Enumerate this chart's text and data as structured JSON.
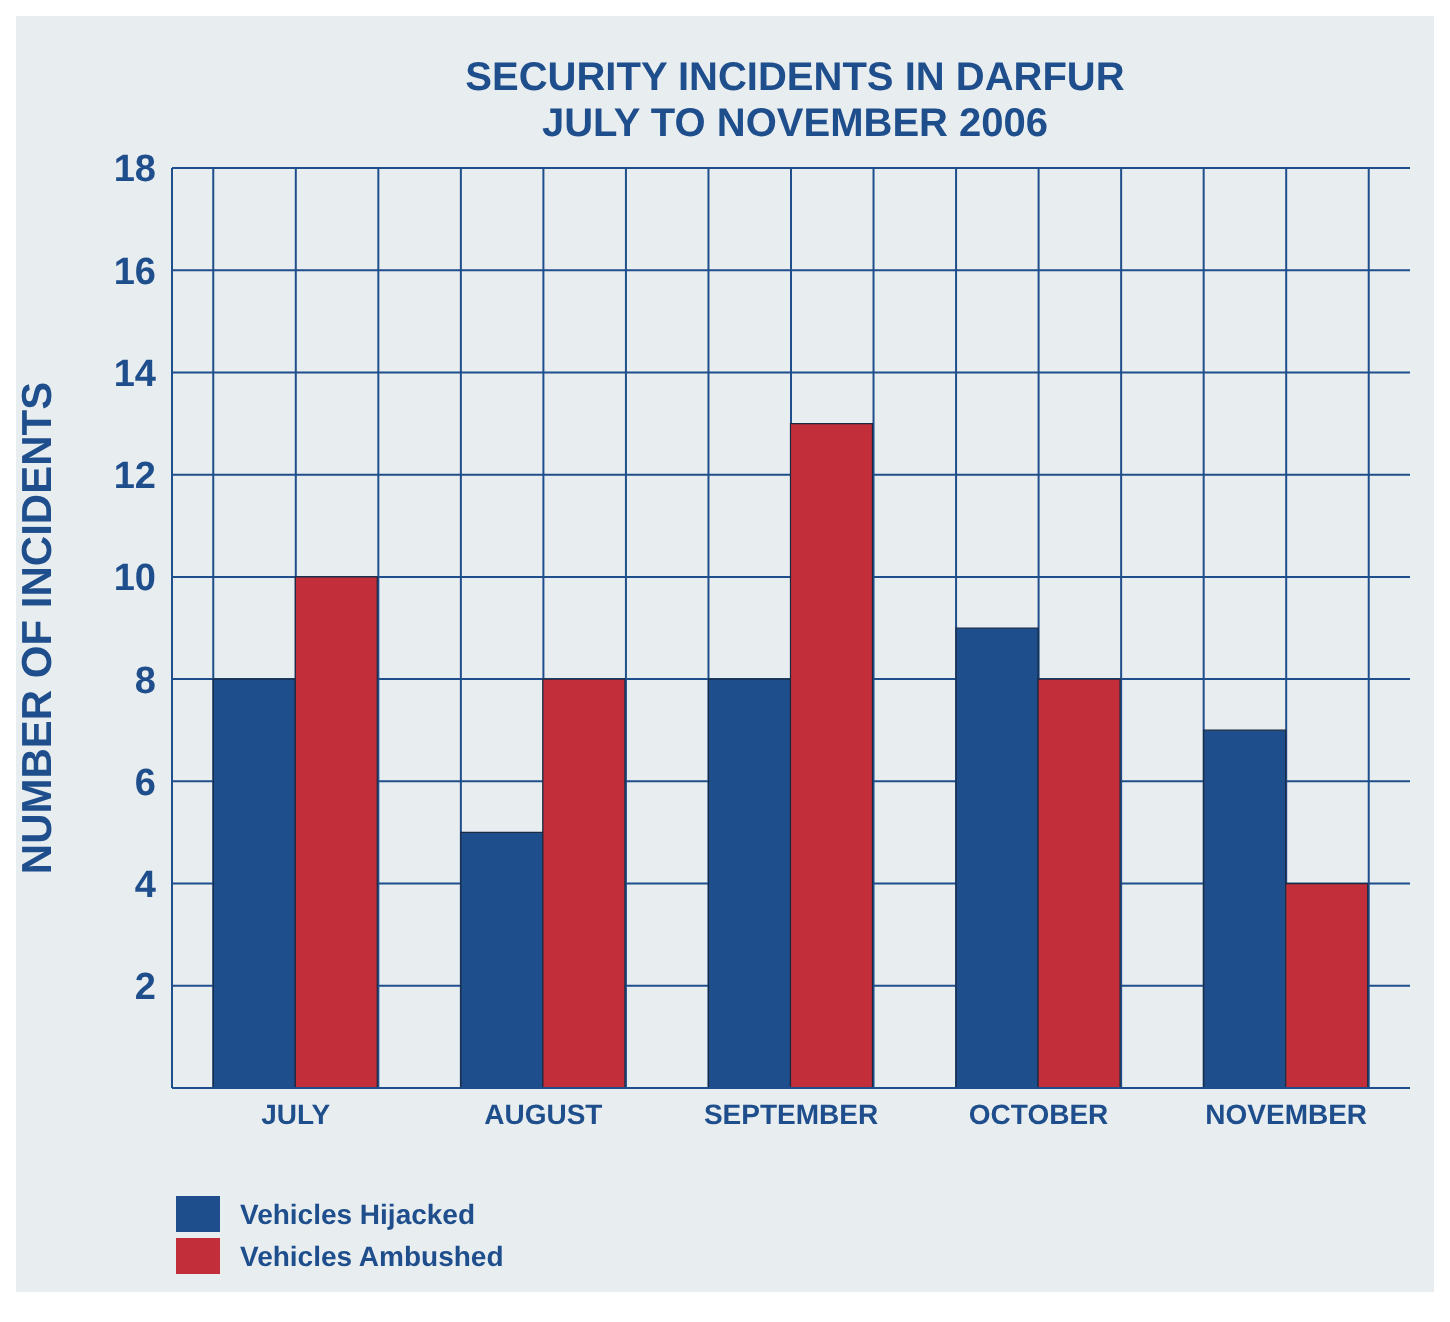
{
  "chart_data": {
    "type": "bar",
    "title": "SECURITY INCIDENTS IN DARFUR",
    "subtitle": "JULY TO NOVEMBER 2006",
    "ylabel": "NUMBER OF INCIDENTS",
    "categories": [
      "JULY",
      "AUGUST",
      "SEPTEMBER",
      "OCTOBER",
      "NOVEMBER"
    ],
    "series": [
      {
        "name": "Vehicles Hijacked",
        "color": "#1f4e8c",
        "values": [
          8,
          5,
          8,
          9,
          7
        ]
      },
      {
        "name": "Vehicles Ambushed",
        "color": "#c22e3a",
        "values": [
          10,
          8,
          13,
          8,
          4
        ]
      }
    ],
    "ylim": [
      0,
      18
    ],
    "yticks": [
      2,
      4,
      6,
      8,
      10,
      12,
      14,
      16,
      18
    ],
    "grid": true,
    "legend": "bottom left"
  }
}
